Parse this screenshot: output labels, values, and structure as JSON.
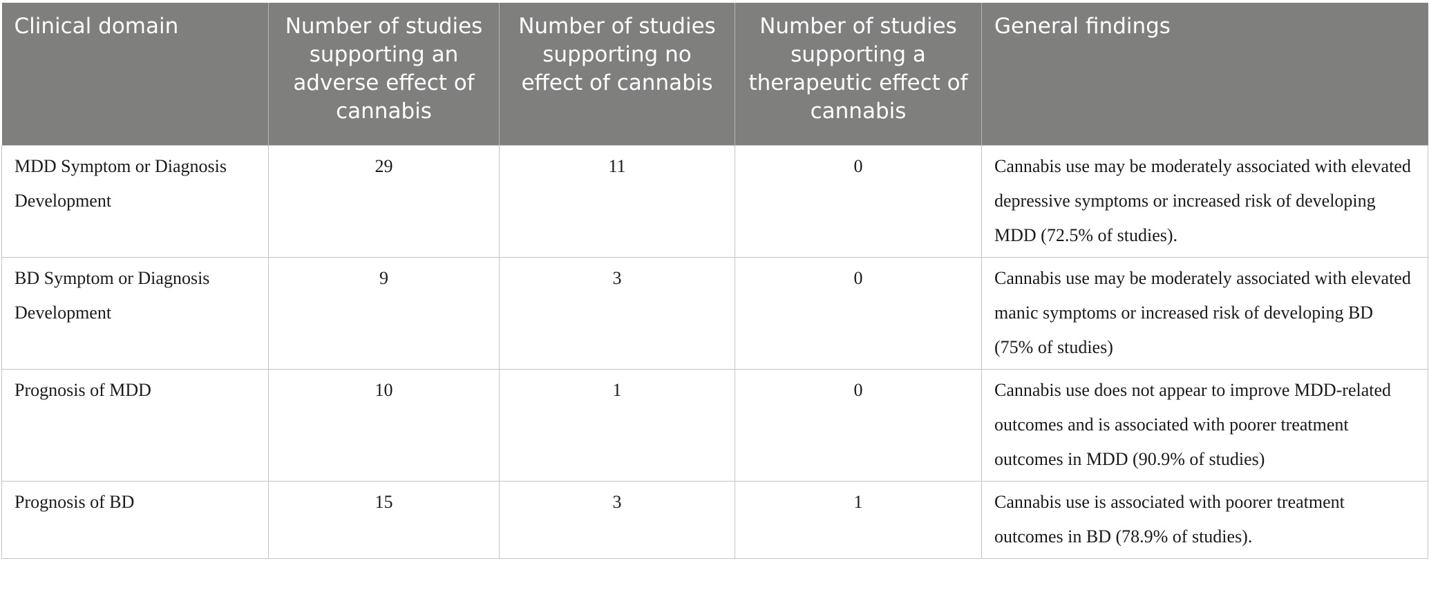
{
  "table": {
    "headers": [
      "Clinical domain",
      "Number of studies supporting an adverse effect of cannabis",
      "Number of studies supporting no effect of cannabis",
      "Number of studies supporting a therapeutic effect of cannabis",
      "General findings"
    ],
    "rows": [
      {
        "domain": "MDD Symptom or Diagnosis Development",
        "adverse": "29",
        "no_effect": "11",
        "therapeutic": "0",
        "findings": "Cannabis use may be moderately associated with elevated depressive symptoms or increased risk of developing MDD (72.5% of studies)."
      },
      {
        "domain": "BD Symptom or Diagnosis Development",
        "adverse": "9",
        "no_effect": "3",
        "therapeutic": "0",
        "findings": "Cannabis use may be moderately associated with elevated manic symptoms or increased risk of developing BD (75% of studies)"
      },
      {
        "domain": "Prognosis of MDD",
        "adverse": "10",
        "no_effect": "1",
        "therapeutic": "0",
        "findings": "Cannabis use does not appear to improve MDD-related outcomes and is associated with poorer treatment outcomes in MDD (90.9% of studies)"
      },
      {
        "domain": "Prognosis of BD",
        "adverse": "15",
        "no_effect": "3",
        "therapeutic": "1",
        "findings": "Cannabis use is associated with poorer treatment outcomes in BD (78.9% of studies)."
      }
    ]
  },
  "colors": {
    "header_bg": "#7f7f7e",
    "header_text": "#ffffff",
    "border": "#c4c4c4"
  }
}
